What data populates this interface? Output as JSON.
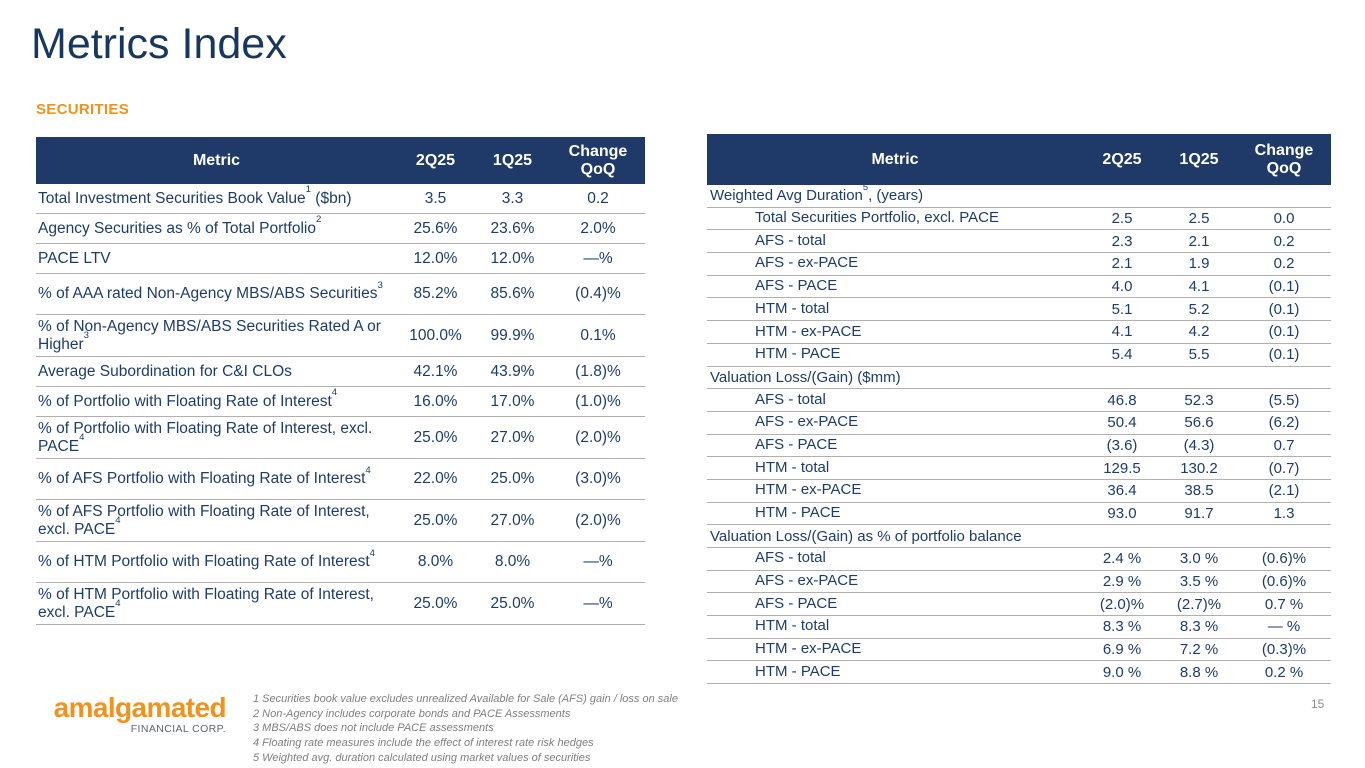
{
  "slide": {
    "title": "Metrics Index",
    "section_label": "SECURITIES",
    "page_number": "15"
  },
  "colors": {
    "navy_text": "#1d3c6b",
    "table_header_bg": "#1f3a68",
    "accent_orange": "#f0931e",
    "footnote_gray": "#7f7f7f",
    "divider_gray": "#b0b0b0"
  },
  "left_table": {
    "headers": [
      "Metric",
      "2Q25",
      "1Q25",
      "Change QoQ"
    ],
    "rows": [
      {
        "metric": "Total Investment Securities Book Value^1^ ($bn)",
        "q2_25": "3.5",
        "q1_25": "3.3",
        "change_qoq": "0.2",
        "two_line": false
      },
      {
        "metric": "Agency Securities as % of Total Portfolio^2^",
        "q2_25": "25.6%",
        "q1_25": "23.6%",
        "change_qoq": "2.0%",
        "two_line": false
      },
      {
        "metric": "PACE LTV",
        "q2_25": "12.0%",
        "q1_25": "12.0%",
        "change_qoq": "—%",
        "two_line": false
      },
      {
        "metric": "% of AAA rated Non-Agency MBS/ABS Securities^3^",
        "q2_25": "85.2%",
        "q1_25": "85.6%",
        "change_qoq": "(0.4)%",
        "two_line": true
      },
      {
        "metric": "% of Non-Agency MBS/ABS Securities Rated A or Higher^3^",
        "q2_25": "100.0%",
        "q1_25": "99.9%",
        "change_qoq": "0.1%",
        "two_line": true
      },
      {
        "metric": "Average Subordination for C&I CLOs",
        "q2_25": "42.1%",
        "q1_25": "43.9%",
        "change_qoq": "(1.8)%",
        "two_line": false
      },
      {
        "metric": "% of Portfolio with Floating Rate of Interest^4^",
        "q2_25": "16.0%",
        "q1_25": "17.0%",
        "change_qoq": "(1.0)%",
        "two_line": false
      },
      {
        "metric": "% of Portfolio with Floating Rate of Interest, excl. PACE^4^",
        "q2_25": "25.0%",
        "q1_25": "27.0%",
        "change_qoq": "(2.0)%",
        "two_line": true
      },
      {
        "metric": "% of AFS Portfolio with Floating Rate of Interest^4^",
        "q2_25": "22.0%",
        "q1_25": "25.0%",
        "change_qoq": "(3.0)%",
        "two_line": true
      },
      {
        "metric": "% of AFS Portfolio with Floating Rate of Interest, excl. PACE^4^",
        "q2_25": "25.0%",
        "q1_25": "27.0%",
        "change_qoq": "(2.0)%",
        "two_line": true
      },
      {
        "metric": "% of HTM Portfolio with Floating Rate of Interest^4^",
        "q2_25": "8.0%",
        "q1_25": "8.0%",
        "change_qoq": "—%",
        "two_line": true
      },
      {
        "metric": "% of HTM Portfolio with Floating Rate of Interest, excl. PACE^4^",
        "q2_25": "25.0%",
        "q1_25": "25.0%",
        "change_qoq": "—%",
        "two_line": true
      }
    ]
  },
  "right_table": {
    "headers": [
      "Metric",
      "2Q25",
      "1Q25",
      "Change QoQ"
    ],
    "rows": [
      {
        "type": "section",
        "metric": "Weighted Avg Duration^5^, (years)"
      },
      {
        "type": "data",
        "metric": "Total Securities Portfolio, excl. PACE",
        "q2_25": "2.5",
        "q1_25": "2.5",
        "change_qoq": "0.0"
      },
      {
        "type": "data",
        "metric": "AFS - total",
        "q2_25": "2.3",
        "q1_25": "2.1",
        "change_qoq": "0.2"
      },
      {
        "type": "data",
        "metric": "AFS - ex-PACE",
        "q2_25": "2.1",
        "q1_25": "1.9",
        "change_qoq": "0.2"
      },
      {
        "type": "data",
        "metric": "AFS - PACE",
        "q2_25": "4.0",
        "q1_25": "4.1",
        "change_qoq": "(0.1)"
      },
      {
        "type": "data",
        "metric": "HTM - total",
        "q2_25": "5.1",
        "q1_25": "5.2",
        "change_qoq": "(0.1)"
      },
      {
        "type": "data",
        "metric": "HTM - ex-PACE",
        "q2_25": "4.1",
        "q1_25": "4.2",
        "change_qoq": "(0.1)"
      },
      {
        "type": "data",
        "metric": "HTM - PACE",
        "q2_25": "5.4",
        "q1_25": "5.5",
        "change_qoq": "(0.1)"
      },
      {
        "type": "section",
        "metric": "Valuation Loss/(Gain) ($mm)"
      },
      {
        "type": "data",
        "metric": "AFS - total",
        "q2_25": "46.8",
        "q1_25": "52.3",
        "change_qoq": "(5.5)"
      },
      {
        "type": "data",
        "metric": "AFS - ex-PACE",
        "q2_25": "50.4",
        "q1_25": "56.6",
        "change_qoq": "(6.2)"
      },
      {
        "type": "data",
        "metric": "AFS - PACE",
        "q2_25": "(3.6)",
        "q1_25": "(4.3)",
        "change_qoq": "0.7"
      },
      {
        "type": "data",
        "metric": "HTM - total",
        "q2_25": "129.5",
        "q1_25": "130.2",
        "change_qoq": "(0.7)"
      },
      {
        "type": "data",
        "metric": "HTM - ex-PACE",
        "q2_25": "36.4",
        "q1_25": "38.5",
        "change_qoq": "(2.1)"
      },
      {
        "type": "data",
        "metric": "HTM - PACE",
        "q2_25": "93.0",
        "q1_25": "91.7",
        "change_qoq": "1.3"
      },
      {
        "type": "section",
        "metric": "Valuation Loss/(Gain) as % of portfolio balance"
      },
      {
        "type": "data",
        "metric": "AFS - total",
        "q2_25": "2.4 %",
        "q1_25": "3.0 %",
        "change_qoq": "(0.6)%"
      },
      {
        "type": "data",
        "metric": "AFS - ex-PACE",
        "q2_25": "2.9 %",
        "q1_25": "3.5 %",
        "change_qoq": "(0.6)%"
      },
      {
        "type": "data",
        "metric": "AFS - PACE",
        "q2_25": "(2.0)%",
        "q1_25": "(2.7)%",
        "change_qoq": "0.7 %"
      },
      {
        "type": "data",
        "metric": "HTM - total",
        "q2_25": "8.3 %",
        "q1_25": "8.3 %",
        "change_qoq": "— %"
      },
      {
        "type": "data",
        "metric": "HTM - ex-PACE",
        "q2_25": "6.9 %",
        "q1_25": "7.2 %",
        "change_qoq": "(0.3)%"
      },
      {
        "type": "data",
        "metric": "HTM - PACE",
        "q2_25": "9.0 %",
        "q1_25": "8.8 %",
        "change_qoq": "0.2 %"
      }
    ]
  },
  "footer": {
    "logo": {
      "name": "amalgamated",
      "subtext": "FINANCIAL CORP."
    },
    "footnotes": [
      "1 Securities book value excludes unrealized Available for Sale (AFS) gain / loss on sale",
      "2 Non-Agency includes corporate bonds and PACE Assessments",
      "3 MBS/ABS does not include PACE assessments",
      "4 Floating rate measures include the effect of interest rate risk hedges",
      "5 Weighted avg. duration calculated using market values of securities"
    ]
  }
}
